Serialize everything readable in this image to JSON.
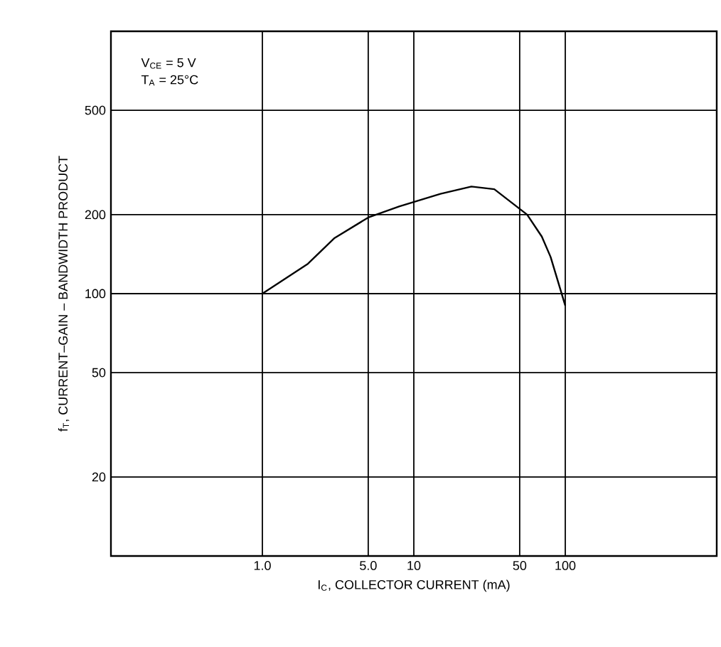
{
  "chart_data": {
    "type": "line",
    "xlabel": "I$_{C}$, COLLECTOR CURRENT (mA)",
    "ylabel": "f$_{T}$, CURRENT–GAIN – BANDWIDTH PRODUCT",
    "annotations": [
      "V$_{CE}$ = 5 V",
      "T$_{A}$ = 25°C"
    ],
    "log": "xy",
    "grid": true,
    "marker": "none",
    "line_style": "solid",
    "xlim": [
      0.1,
      1000
    ],
    "ylim": [
      10,
      1000
    ],
    "xticks": [
      {
        "value": 1,
        "label": "1.0"
      },
      {
        "value": 5,
        "label": "5.0"
      },
      10,
      50,
      100
    ],
    "yticks": [
      20,
      50,
      100,
      200,
      500
    ],
    "series": [
      {
        "color": "#000000",
        "x": [
          1,
          2,
          3,
          5,
          8,
          15,
          24,
          34,
          56,
          70,
          80,
          100
        ],
        "values": [
          100,
          130,
          163,
          195,
          215,
          240,
          256,
          250,
          200,
          165,
          138,
          90
        ]
      }
    ]
  }
}
